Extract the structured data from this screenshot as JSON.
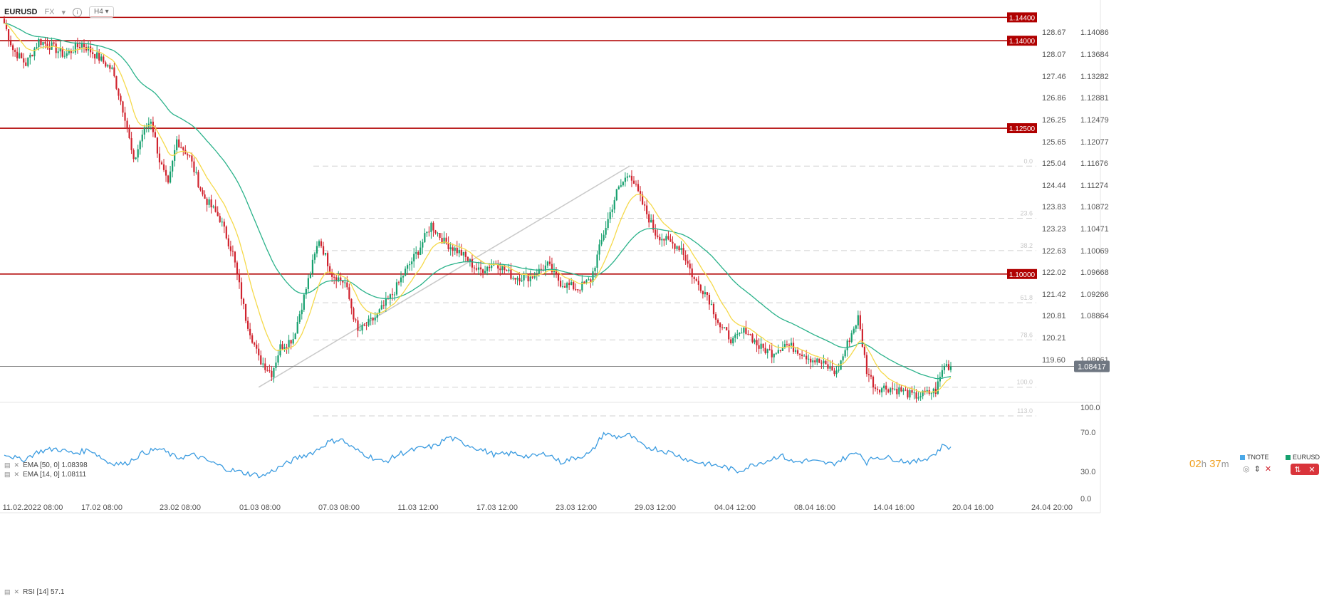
{
  "header": {
    "symbol": "EURUSD",
    "market": "FX",
    "timeframe": "H4"
  },
  "indicators": {
    "ema50": "EMA [50, 0] 1.08398",
    "ema14": "EMA [14, 0] 1.08111",
    "rsi": "RSI [14] 57.1"
  },
  "countdown": {
    "hours": "02",
    "h": "h",
    "minutes": "37",
    "m": "m"
  },
  "symbols_legend": [
    {
      "name": "TNOTE",
      "color": "#4aa8e8"
    },
    {
      "name": "EURUSD",
      "color": "#16a06e"
    }
  ],
  "colors": {
    "bull": "#16a06e",
    "bear": "#d0232e",
    "ema50": "#2ab28a",
    "ema14": "#f5d94a",
    "level": "#b00000",
    "rsi": "#3a9be0",
    "fib": "#d0d0d0"
  },
  "chart_data": {
    "type": "candlestick",
    "instrument": "EURUSD",
    "timeframe": "H4",
    "x_tick_labels": [
      "11.02.2022 08:00",
      "17.02 08:00",
      "23.02 08:00",
      "01.03 08:00",
      "07.03 08:00",
      "11.03 12:00",
      "17.03 12:00",
      "23.03 12:00",
      "29.03 12:00",
      "04.04 12:00",
      "08.04 16:00",
      "14.04 16:00",
      "20.04 16:00",
      "24.04 20:00"
    ],
    "y_right_ticks": [
      "1.14086",
      "1.13684",
      "1.13282",
      "1.12881",
      "1.12479",
      "1.12077",
      "1.11676",
      "1.11274",
      "1.10872",
      "1.10471",
      "1.10069",
      "1.09668",
      "1.09266",
      "1.08864",
      "1.08417",
      "1.08061"
    ],
    "y_left_ticks": [
      "128.67",
      "128.07",
      "127.46",
      "126.86",
      "126.25",
      "125.65",
      "125.04",
      "124.44",
      "123.83",
      "123.23",
      "122.63",
      "122.02",
      "121.42",
      "120.81",
      "120.21",
      "119.60"
    ],
    "y_range": [
      1.078,
      1.146
    ],
    "horizontal_levels": [
      "1.14400",
      "1.14000",
      "1.12500",
      "1.10000"
    ],
    "current_price": "1.08417",
    "fibonacci": {
      "high": 1.1185,
      "low": 1.0806,
      "levels": [
        {
          "ratio": 0.0,
          "label": "0.0"
        },
        {
          "ratio": 0.236,
          "label": "23.6"
        },
        {
          "ratio": 0.382,
          "label": "38.2"
        },
        {
          "ratio": 0.618,
          "label": "61.8"
        },
        {
          "ratio": 0.786,
          "label": "78.6"
        },
        {
          "ratio": 1.0,
          "label": "100.0"
        },
        {
          "ratio": 1.13,
          "label": "113.0"
        }
      ]
    },
    "close_waypoints": [
      [
        0,
        1.143
      ],
      [
        4,
        1.1385
      ],
      [
        10,
        1.136
      ],
      [
        16,
        1.14
      ],
      [
        22,
        1.139
      ],
      [
        28,
        1.1375
      ],
      [
        36,
        1.1395
      ],
      [
        44,
        1.137
      ],
      [
        50,
        1.135
      ],
      [
        56,
        1.127
      ],
      [
        60,
        1.119
      ],
      [
        64,
        1.124
      ],
      [
        68,
        1.1265
      ],
      [
        72,
        1.1195
      ],
      [
        76,
        1.115
      ],
      [
        80,
        1.123
      ],
      [
        86,
        1.12
      ],
      [
        92,
        1.1135
      ],
      [
        100,
        1.1095
      ],
      [
        106,
        1.1035
      ],
      [
        112,
        1.0925
      ],
      [
        118,
        1.0855
      ],
      [
        124,
        1.083
      ],
      [
        128,
        1.0875
      ],
      [
        134,
        1.089
      ],
      [
        140,
        1.0975
      ],
      [
        146,
        1.106
      ],
      [
        152,
        1.1
      ],
      [
        158,
        1.0985
      ],
      [
        164,
        1.09
      ],
      [
        172,
        1.0925
      ],
      [
        180,
        1.0965
      ],
      [
        186,
        1.1005
      ],
      [
        192,
        1.104
      ],
      [
        198,
        1.1085
      ],
      [
        204,
        1.1055
      ],
      [
        212,
        1.1035
      ],
      [
        220,
        1.1005
      ],
      [
        228,
        1.102
      ],
      [
        236,
        1.0995
      ],
      [
        244,
        1.0995
      ],
      [
        252,
        1.1015
      ],
      [
        258,
        1.0985
      ],
      [
        266,
        1.0975
      ],
      [
        272,
        1.099
      ],
      [
        278,
        1.107
      ],
      [
        284,
        1.114
      ],
      [
        290,
        1.1175
      ],
      [
        296,
        1.112
      ],
      [
        302,
        1.107
      ],
      [
        308,
        1.1055
      ],
      [
        314,
        1.1045
      ],
      [
        320,
        1.099
      ],
      [
        326,
        1.0965
      ],
      [
        332,
        1.091
      ],
      [
        338,
        1.0885
      ],
      [
        344,
        1.0905
      ],
      [
        350,
        1.0875
      ],
      [
        356,
        1.0865
      ],
      [
        362,
        1.088
      ],
      [
        368,
        1.087
      ],
      [
        374,
        1.0855
      ],
      [
        380,
        1.0845
      ],
      [
        386,
        1.083
      ],
      [
        392,
        1.089
      ],
      [
        396,
        1.0925
      ],
      [
        400,
        1.0835
      ],
      [
        404,
        1.0805
      ],
      [
        410,
        1.0805
      ],
      [
        416,
        1.08
      ],
      [
        422,
        1.079
      ],
      [
        428,
        1.0795
      ],
      [
        432,
        1.08
      ],
      [
        436,
        1.0845
      ],
      [
        438,
        1.0842
      ]
    ],
    "rsi": {
      "ticks": [
        "100.0",
        "70.0",
        "30.0",
        "0.0"
      ],
      "last": 57.1,
      "waypoints": [
        [
          0,
          50
        ],
        [
          8,
          42
        ],
        [
          16,
          52
        ],
        [
          24,
          55
        ],
        [
          32,
          50
        ],
        [
          40,
          54
        ],
        [
          48,
          40
        ],
        [
          56,
          38
        ],
        [
          64,
          50
        ],
        [
          72,
          55
        ],
        [
          80,
          45
        ],
        [
          88,
          48
        ],
        [
          96,
          40
        ],
        [
          104,
          32
        ],
        [
          112,
          28
        ],
        [
          120,
          25
        ],
        [
          128,
          35
        ],
        [
          136,
          45
        ],
        [
          144,
          52
        ],
        [
          150,
          62
        ],
        [
          156,
          66
        ],
        [
          162,
          55
        ],
        [
          168,
          48
        ],
        [
          176,
          40
        ],
        [
          184,
          50
        ],
        [
          192,
          55
        ],
        [
          200,
          58
        ],
        [
          206,
          68
        ],
        [
          212,
          62
        ],
        [
          220,
          55
        ],
        [
          228,
          48
        ],
        [
          236,
          50
        ],
        [
          244,
          46
        ],
        [
          252,
          50
        ],
        [
          258,
          40
        ],
        [
          266,
          46
        ],
        [
          272,
          50
        ],
        [
          278,
          72
        ],
        [
          284,
          68
        ],
        [
          290,
          70
        ],
        [
          296,
          58
        ],
        [
          302,
          55
        ],
        [
          310,
          50
        ],
        [
          318,
          42
        ],
        [
          326,
          38
        ],
        [
          334,
          35
        ],
        [
          340,
          30
        ],
        [
          348,
          38
        ],
        [
          354,
          42
        ],
        [
          360,
          48
        ],
        [
          366,
          40
        ],
        [
          372,
          42
        ],
        [
          378,
          40
        ],
        [
          384,
          38
        ],
        [
          390,
          45
        ],
        [
          396,
          52
        ],
        [
          400,
          40
        ],
        [
          404,
          46
        ],
        [
          410,
          45
        ],
        [
          416,
          42
        ],
        [
          422,
          40
        ],
        [
          428,
          45
        ],
        [
          432,
          50
        ],
        [
          436,
          60
        ],
        [
          438,
          57
        ]
      ]
    }
  }
}
